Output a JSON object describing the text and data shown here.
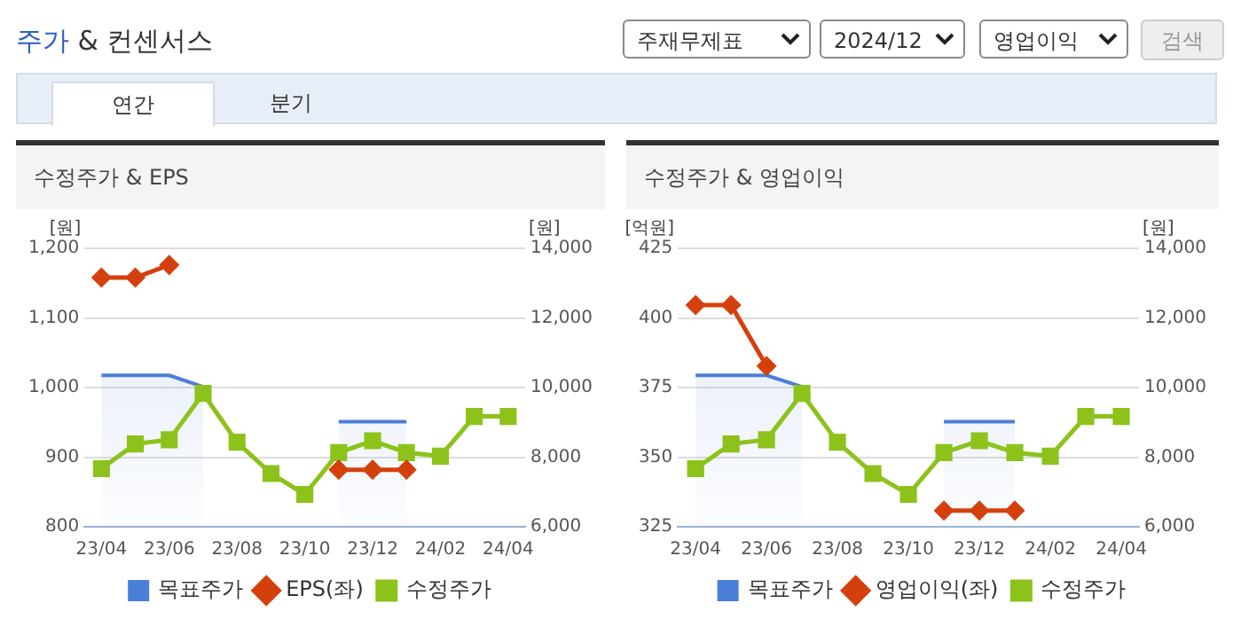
{
  "chart_data": [
    {
      "type": "other",
      "title": "주가 & 컨센서스",
      "annotations": [
        "주재무제표",
        "2024/12",
        "영업이익",
        "검색",
        "연간",
        "분기"
      ]
    },
    {
      "type": "line",
      "title": "수정주가 & EPS",
      "ylabel": "[원]",
      "y2label": "[원]",
      "categories": [
        "23/04",
        null,
        "23/06",
        null,
        "23/08",
        null,
        "23/10",
        null,
        "23/12",
        null,
        "24/02",
        null,
        "24/04"
      ],
      "series": [
        {
          "name": "목표주가",
          "type": "area",
          "axis": "y2",
          "color": "#4a7fd8",
          "marker": "none",
          "values": [
            10350,
            10350,
            10350,
            10020,
            null,
            null,
            null,
            9020,
            9020,
            9020,
            null,
            null,
            null
          ]
        },
        {
          "name": "EPS(좌)",
          "type": "line",
          "color": "#d4400c",
          "marker": "diamond",
          "values": [
            1158,
            1158,
            1176,
            null,
            null,
            null,
            null,
            882,
            882,
            882,
            null,
            null,
            null
          ]
        },
        {
          "name": "수정주가",
          "type": "line",
          "axis": "y2",
          "color": "#8cc21a",
          "marker": "square",
          "values": [
            7670,
            8380,
            8500,
            9830,
            8430,
            7530,
            6930,
            8130,
            8470,
            8130,
            8030,
            9170,
            9170
          ]
        }
      ],
      "ylim": [
        800,
        1200
      ],
      "yticks": [
        800,
        900,
        {
          "value": 1000,
          "label": "1,000"
        },
        {
          "value": 1100,
          "label": "1,100"
        },
        {
          "value": 1200,
          "label": "1,200"
        }
      ],
      "y2lim": [
        6000,
        14000
      ],
      "y2ticks": [
        {
          "value": 6000,
          "label": "6,000"
        },
        {
          "value": 8000,
          "label": "8,000"
        },
        {
          "value": 10000,
          "label": "10,000"
        },
        {
          "value": 12000,
          "label": "12,000"
        },
        {
          "value": 14000,
          "label": "14,000"
        }
      ],
      "grid": "y",
      "legend": "bottom"
    },
    {
      "type": "line",
      "title": "수정주가 & 영업이익",
      "ylabel": "[억원]",
      "y2label": "[원]",
      "categories": [
        "23/04",
        null,
        "23/06",
        null,
        "23/08",
        null,
        "23/10",
        null,
        "23/12",
        null,
        "24/02",
        null,
        "24/04"
      ],
      "series": [
        {
          "name": "목표주가",
          "type": "area",
          "axis": "y2",
          "color": "#4a7fd8",
          "marker": "none",
          "values": [
            10350,
            10350,
            10350,
            10020,
            null,
            null,
            null,
            9020,
            9020,
            9020,
            null,
            null,
            null
          ]
        },
        {
          "name": "영업이익(좌)",
          "type": "line",
          "color": "#d4400c",
          "marker": "diamond",
          "values": [
            404.6,
            404.6,
            382.7,
            null,
            null,
            null,
            null,
            330.8,
            330.8,
            330.8,
            null,
            null,
            null
          ]
        },
        {
          "name": "수정주가",
          "type": "line",
          "axis": "y2",
          "color": "#8cc21a",
          "marker": "square",
          "values": [
            7670,
            8380,
            8500,
            9830,
            8430,
            7530,
            6930,
            8130,
            8470,
            8130,
            8030,
            9170,
            9170
          ]
        }
      ],
      "ylim": [
        325,
        425
      ],
      "yticks": [
        325,
        350,
        375,
        400,
        425
      ],
      "y2lim": [
        6000,
        14000
      ],
      "y2ticks": [
        {
          "value": 6000,
          "label": "6,000"
        },
        {
          "value": 8000,
          "label": "8,000"
        },
        {
          "value": 10000,
          "label": "10,000"
        },
        {
          "value": 12000,
          "label": "12,000"
        },
        {
          "value": 14000,
          "label": "14,000"
        }
      ],
      "grid": "y",
      "legend": "bottom"
    }
  ]
}
